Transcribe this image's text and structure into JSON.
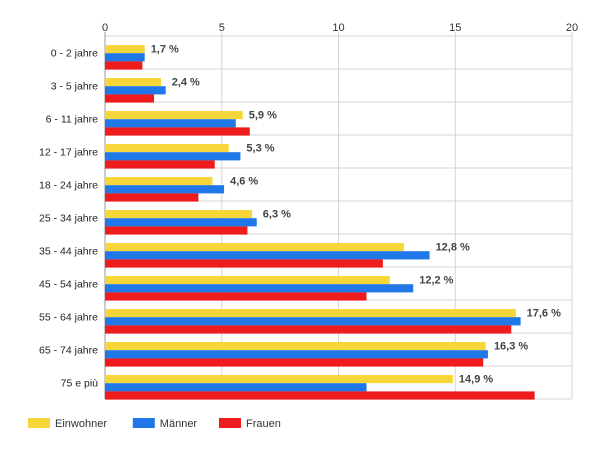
{
  "chart_data": {
    "type": "bar",
    "orientation": "horizontal",
    "categories": [
      "0 - 2 jahre",
      "3 - 5 jahre",
      "6 - 11 jahre",
      "12 - 17 jahre",
      "18 - 24 jahre",
      "25 - 34 jahre",
      "35 - 44 jahre",
      "45 - 54 jahre",
      "55 - 64 jahre",
      "65 - 74 jahre",
      "75 e più"
    ],
    "series": [
      {
        "name": "Einwohner",
        "color": "#f7d63a",
        "values": [
          1.7,
          2.4,
          5.9,
          5.3,
          4.6,
          6.3,
          12.8,
          12.2,
          17.6,
          16.3,
          14.9
        ]
      },
      {
        "name": "Männer",
        "color": "#1f77e8",
        "values": [
          1.7,
          2.6,
          5.6,
          5.8,
          5.1,
          6.5,
          13.9,
          13.2,
          17.8,
          16.4,
          11.2
        ]
      },
      {
        "name": "Frauen",
        "color": "#ee1c1c",
        "values": [
          1.6,
          2.1,
          6.2,
          4.7,
          4.0,
          6.1,
          11.9,
          11.2,
          17.4,
          16.2,
          18.4
        ]
      }
    ],
    "data_labels": [
      "1,7 %",
      "2,4 %",
      "5,9 %",
      "5,3 %",
      "4,6 %",
      "6,3 %",
      "12,8 %",
      "12,2 %",
      "17,6 %",
      "16,3 %",
      "14,9 %"
    ],
    "x_ticks": [
      "0",
      "5",
      "10",
      "15",
      "20"
    ],
    "xlim": [
      0,
      20
    ],
    "grid": true,
    "legend_position": "bottom-left"
  }
}
